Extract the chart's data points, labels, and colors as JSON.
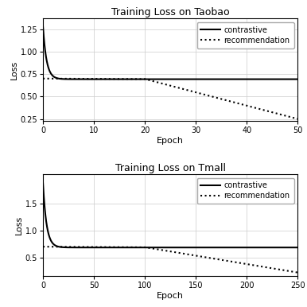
{
  "taobao": {
    "title": "Training Loss on Taobao",
    "xlabel": "Epoch",
    "ylabel": "Loss",
    "xlim": [
      0,
      50
    ],
    "ylim": [
      0.23,
      1.37
    ],
    "yticks": [
      0.25,
      0.5,
      0.75,
      1.0,
      1.25
    ],
    "xticks": [
      0,
      10,
      20,
      30,
      40,
      50
    ],
    "epochs": 50,
    "contrastive_start": 1.28,
    "contrastive_plateau": 0.693,
    "contrastive_decay": 0.7,
    "recommendation_start": 0.7,
    "recommendation_flat_end": 20,
    "recommendation_flat_val": 0.695,
    "recommendation_end": 0.25
  },
  "tmall": {
    "title": "Training Loss on Tmall",
    "xlabel": "Epoch",
    "ylabel": "Loss",
    "xlim": [
      0,
      250
    ],
    "ylim": [
      0.15,
      2.05
    ],
    "yticks": [
      0.5,
      1.0,
      1.5
    ],
    "xticks": [
      0,
      50,
      100,
      150,
      200,
      250
    ],
    "epochs": 250,
    "contrastive_start": 1.88,
    "contrastive_plateau": 0.685,
    "contrastive_decay": 3.5,
    "recommendation_start": 0.7,
    "recommendation_flat_end": 100,
    "recommendation_flat_val": 0.69,
    "recommendation_end": 0.22
  },
  "line_color": "#000000",
  "line_width": 1.5,
  "legend_loc": "upper right",
  "figsize": [
    3.86,
    3.86
  ],
  "dpi": 100
}
